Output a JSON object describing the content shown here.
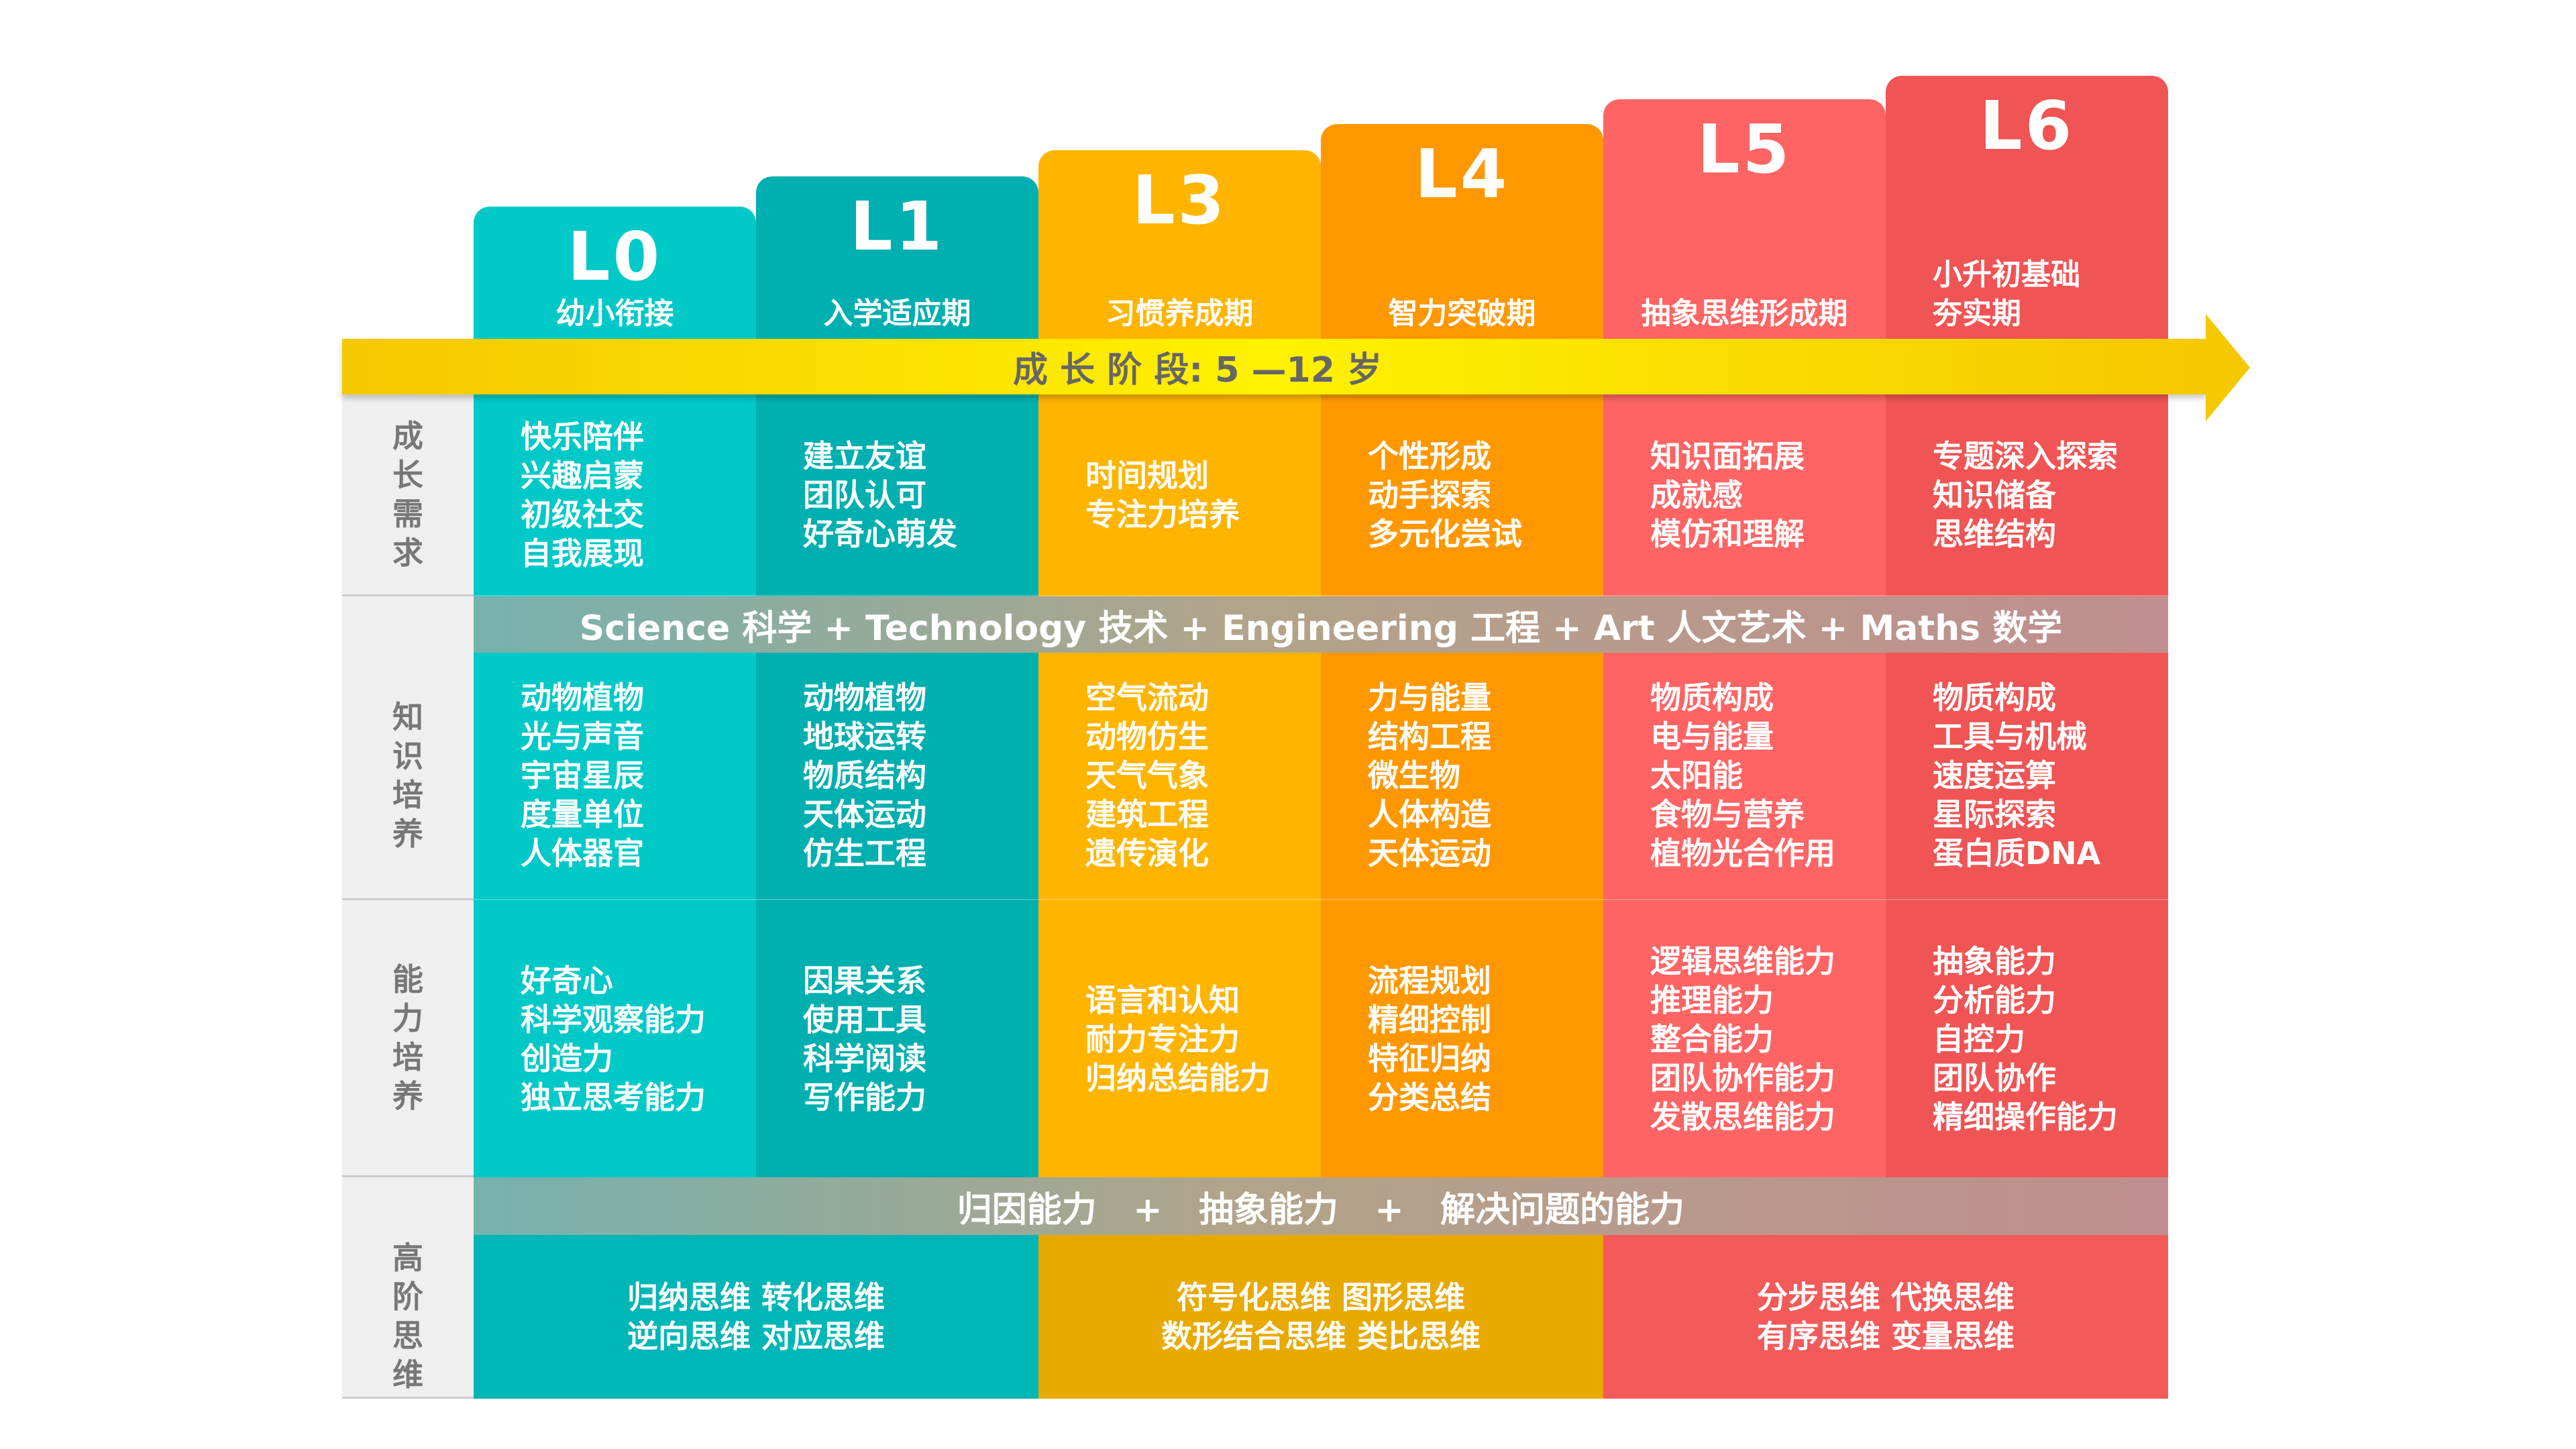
{
  "arrow": {
    "label": "成 长 阶 段: 5 —12 岁"
  },
  "row_labels": [
    "成长需求",
    "知识培养",
    "能力培养",
    "高阶思维"
  ],
  "levels": [
    {
      "code": "L0",
      "stage": [
        "幼小衔接"
      ],
      "color": "#00C9C8",
      "needs": [
        "快乐陪伴",
        "兴趣启蒙",
        "初级社交",
        "自我展现"
      ],
      "knowledge": [
        "动物植物",
        "光与声音",
        "宇宙星辰",
        "度量单位",
        "人体器官"
      ],
      "abilities": [
        "好奇心",
        "科学观察能力",
        "创造力",
        "独立思考能力"
      ]
    },
    {
      "code": "L1",
      "stage": [
        "入学适应期"
      ],
      "color": "#00AFAF",
      "needs": [
        "建立友谊",
        "团队认可",
        "好奇心萌发"
      ],
      "knowledge": [
        "动物植物",
        "地球运转",
        "物质结构",
        "天体运动",
        "仿生工程"
      ],
      "abilities": [
        "因果关系",
        "使用工具",
        "科学阅读",
        "写作能力"
      ]
    },
    {
      "code": "L3",
      "stage": [
        "习惯养成期"
      ],
      "color": "#FFB400",
      "needs": [
        "时间规划",
        "专注力培养"
      ],
      "knowledge": [
        "空气流动",
        "动物仿生",
        "天气气象",
        "建筑工程",
        "遗传演化"
      ],
      "abilities": [
        "语言和认知",
        "耐力专注力",
        "归纳总结能力"
      ]
    },
    {
      "code": "L4",
      "stage": [
        "智力突破期"
      ],
      "color": "#FF9800",
      "needs": [
        "个性形成",
        "动手探索",
        "多元化尝试"
      ],
      "knowledge": [
        "力与能量",
        "结构工程",
        "微生物",
        "人体构造",
        "天体运动"
      ],
      "abilities": [
        "流程规划",
        "精细控制",
        "特征归纳",
        "分类总结"
      ]
    },
    {
      "code": "L5",
      "stage": [
        "抽象思维形成期"
      ],
      "color": "#FF6464",
      "needs": [
        "知识面拓展",
        "成就感",
        "模仿和理解"
      ],
      "knowledge": [
        "物质构成",
        "电与能量",
        "太阳能",
        "食物与营养",
        "植物光合作用"
      ],
      "abilities": [
        "逻辑思维能力",
        "推理能力",
        "整合能力",
        "团队协作能力",
        "发散思维能力"
      ]
    },
    {
      "code": "L6",
      "stage": [
        "小升初基础",
        "夯实期"
      ],
      "color": "#F05454",
      "needs": [
        "专题深入探索",
        "知识储备",
        "思维结构"
      ],
      "knowledge": [
        "物质构成",
        "工具与机械",
        "速度运算",
        "星际探索",
        "蛋白质DNA"
      ],
      "abilities": [
        "抽象能力",
        "分析能力",
        "自控力",
        "团队协作",
        "精细操作能力"
      ]
    }
  ],
  "steam_band": "Science 科学 + Technology 技术 + Engineering 工程 + Art 人文艺术 + Maths 数学",
  "thinking_band": "归因能力   +   抽象能力   +   解决问题的能力",
  "higher_thinking": [
    {
      "lines": [
        "归纳思维 转化思维",
        "逆向思维 对应思维"
      ],
      "color": "#00B6B6"
    },
    {
      "lines": [
        "符号化思维 图形思维",
        "数形结合思维 类比思维"
      ],
      "color": "#E8A900"
    },
    {
      "lines": [
        "分步思维 代换思维",
        "有序思维 变量思维"
      ],
      "color": "#F35A5A"
    }
  ]
}
